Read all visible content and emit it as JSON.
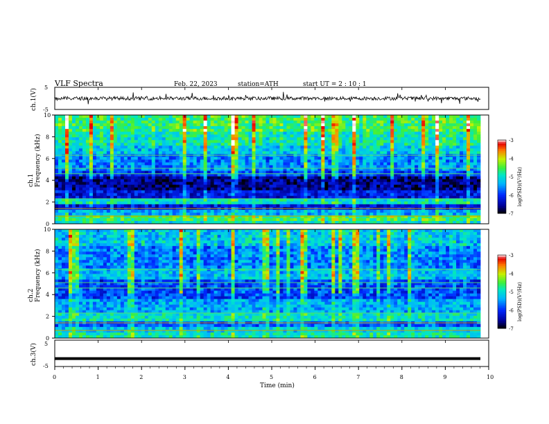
{
  "header": {
    "title": "VLF  Spectra",
    "date": "Feb. 22, 2023",
    "station": "station=ATH",
    "start": "start  UT  =   2  : 10 : 1"
  },
  "chart_data": [
    {
      "type": "line",
      "panel": "ch1-waveform",
      "ylabel": "ch.1(V)",
      "ylim": [
        -5,
        5
      ],
      "yticks": [
        "5",
        "-5"
      ],
      "xlim": [
        0,
        10
      ],
      "trace_color": "#000000",
      "baseline_value": 0,
      "series_note": ""
    },
    {
      "type": "heatmap",
      "panel": "ch1-spectrogram",
      "ylabel_lines": [
        "ch.1",
        "Frequency  (kHz)"
      ],
      "ylim": [
        0,
        10
      ],
      "yticks": [
        "0",
        "2",
        "4",
        "6",
        "8",
        "10"
      ],
      "xlim": [
        0,
        9.8
      ],
      "colorbar": {
        "label": "log(PSD)(V²/Hz)",
        "range": [
          -7,
          -3
        ],
        "ticks": [
          "-3",
          "-4",
          "-5",
          "-6",
          "-7"
        ]
      },
      "bands": [
        {
          "from": 0,
          "to": 0.3,
          "level": -5.0
        },
        {
          "from": 0.3,
          "to": 0.8,
          "level": -4.6
        },
        {
          "from": 0.8,
          "to": 1.2,
          "level": -5.4
        },
        {
          "from": 1.2,
          "to": 1.8,
          "level": -6.2
        },
        {
          "from": 1.8,
          "to": 2.4,
          "level": -5.0
        },
        {
          "from": 2.4,
          "to": 3.2,
          "level": -6.2
        },
        {
          "from": 3.2,
          "to": 4.4,
          "level": -6.6
        },
        {
          "from": 4.4,
          "to": 5.0,
          "level": -6.0
        },
        {
          "from": 5.0,
          "to": 6.5,
          "level": -5.6
        },
        {
          "from": 6.5,
          "to": 7.2,
          "level": -5.2
        },
        {
          "from": 7.2,
          "to": 8.5,
          "level": -4.9
        },
        {
          "from": 8.5,
          "to": 10,
          "level": -4.6
        }
      ]
    },
    {
      "type": "heatmap",
      "panel": "ch2-spectrogram",
      "ylabel_lines": [
        "ch.2",
        "Frequency  (kHz)"
      ],
      "ylim": [
        0,
        10
      ],
      "yticks": [
        "0",
        "2",
        "4",
        "6",
        "8",
        "10"
      ],
      "xlim": [
        0,
        9.8
      ],
      "colorbar": {
        "label": "log(PSD)(V²/Hz)",
        "range": [
          -7,
          -3
        ],
        "ticks": [
          "-3",
          "-4",
          "-5",
          "-6",
          "-7"
        ]
      },
      "bands": [
        {
          "from": 0,
          "to": 0.4,
          "level": -4.9
        },
        {
          "from": 0.4,
          "to": 1.0,
          "level": -5.2
        },
        {
          "from": 1.0,
          "to": 1.6,
          "level": -5.8
        },
        {
          "from": 1.6,
          "to": 2.4,
          "level": -5.0
        },
        {
          "from": 2.4,
          "to": 3.6,
          "level": -5.4
        },
        {
          "from": 3.6,
          "to": 5.5,
          "level": -5.9
        },
        {
          "from": 5.5,
          "to": 6.5,
          "level": -5.3
        },
        {
          "from": 6.5,
          "to": 8.5,
          "level": -5.6
        },
        {
          "from": 8.5,
          "to": 10,
          "level": -5.2
        }
      ]
    },
    {
      "type": "line",
      "panel": "ch3-waveform",
      "ylabel": "ch.3(V)",
      "ylim": [
        -5,
        5
      ],
      "yticks": [
        "5",
        "-5"
      ],
      "xlim": [
        0,
        10
      ],
      "xlabel": "Time  (min)",
      "xticks": [
        "0",
        "1",
        "2",
        "3",
        "4",
        "5",
        "6",
        "7",
        "8",
        "9",
        "10"
      ],
      "trace_value": -2,
      "trace_color": "#000000"
    }
  ]
}
